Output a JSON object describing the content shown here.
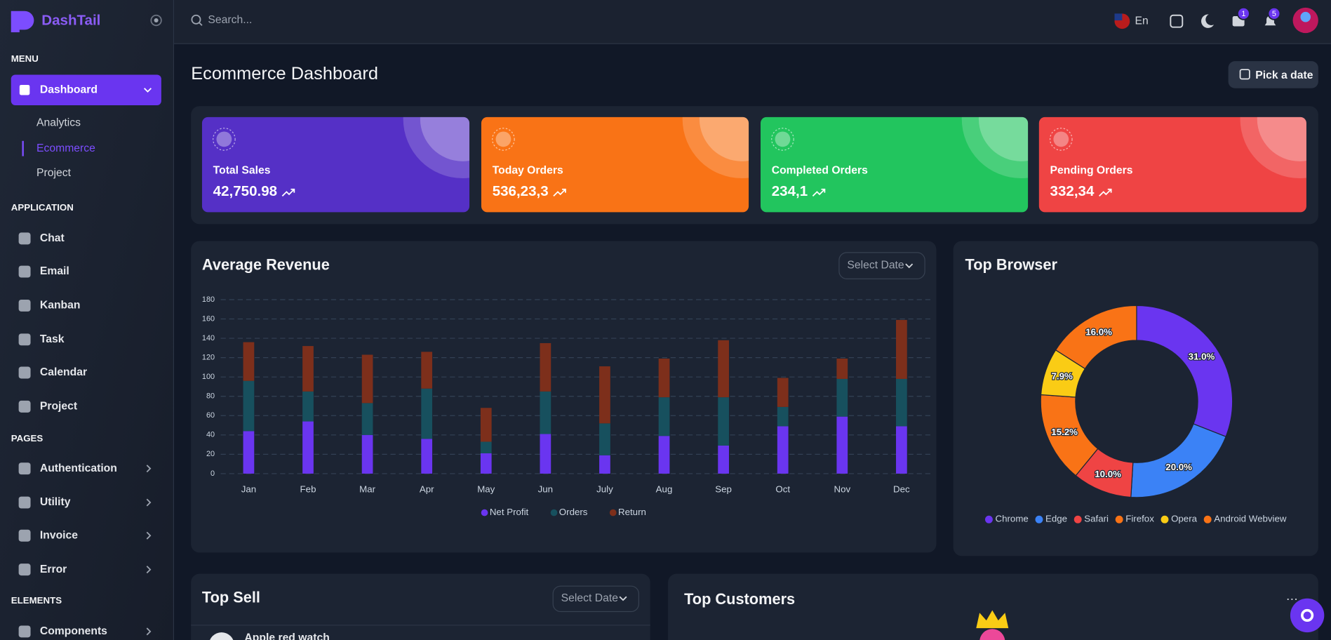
{
  "sidebar": {
    "brand": "DashTail",
    "sections": [
      {
        "title": "MENU",
        "items": [
          {
            "label": "Dashboard",
            "children": [
              "Analytics",
              "Ecommerce",
              "Project"
            ]
          }
        ]
      },
      {
        "title": "APPLICATION",
        "items": [
          {
            "label": "Chat"
          },
          {
            "label": "Email"
          },
          {
            "label": "Kanban"
          },
          {
            "label": "Task"
          },
          {
            "label": "Calendar"
          },
          {
            "label": "Project"
          }
        ]
      },
      {
        "title": "PAGES",
        "items": [
          {
            "label": "Authentication"
          },
          {
            "label": "Utility"
          },
          {
            "label": "Invoice"
          },
          {
            "label": "Error"
          }
        ]
      },
      {
        "title": "ELEMENTS",
        "items": [
          {
            "label": "Components"
          }
        ]
      }
    ]
  },
  "header": {
    "search_placeholder": "Search...",
    "language": "En",
    "badges": [
      "1",
      "5"
    ]
  },
  "page": {
    "title": "Ecommerce Dashboard",
    "date_button": "Pick a date"
  },
  "stats": [
    {
      "label": "Total Sales",
      "value": "42,750.98"
    },
    {
      "label": "Today Orders",
      "value": "536,23,3"
    },
    {
      "label": "Completed Orders",
      "value": "234,1"
    },
    {
      "label": "Pending Orders",
      "value": "332,34"
    }
  ],
  "revenue_card": {
    "select": "Select Date"
  },
  "top_sell": {
    "title": "Top Sell",
    "select": "Select Date",
    "items": [
      "Apple red watch"
    ]
  },
  "top_customers": {
    "title": "Top Customers"
  },
  "chart_data": [
    {
      "type": "stacked_bar",
      "title": "Average Revenue",
      "categories": [
        "Jan",
        "Feb",
        "Mar",
        "Apr",
        "May",
        "Jun",
        "July",
        "Aug",
        "Sep",
        "Oct",
        "Nov",
        "Dec"
      ],
      "series": [
        {
          "name": "Net Profit",
          "color": "#6a35f0",
          "values": [
            44,
            54,
            40,
            36,
            21,
            41,
            19,
            39,
            29,
            49,
            59,
            49
          ]
        },
        {
          "name": "Orders",
          "color": "#17505e",
          "values": [
            52,
            31,
            33,
            52,
            12,
            44,
            33,
            40,
            50,
            20,
            39,
            49
          ]
        },
        {
          "name": "Return",
          "color": "#7d2f1b",
          "values": [
            40,
            47,
            50,
            38,
            35,
            50,
            59,
            40,
            59,
            30,
            21,
            61
          ]
        }
      ],
      "ylim": [
        0,
        180
      ],
      "yticks": [
        0,
        20,
        40,
        60,
        80,
        100,
        120,
        140,
        160,
        180
      ],
      "grid": true,
      "legend": "bottom"
    },
    {
      "type": "donut",
      "title": "Top Browser",
      "categories": [
        "Chrome",
        "Edge",
        "Safari",
        "Firefox",
        "Opera",
        "Android Webview"
      ],
      "values": [
        31.0,
        20.0,
        10.0,
        15.2,
        7.9,
        16.0
      ],
      "value_labels": [
        "31.0%",
        "20.0%",
        "10.0%",
        "15.2%",
        "7.9%",
        "16.0%"
      ],
      "colors": [
        "#6a35f0",
        "#3b82f6",
        "#ef4444",
        "#f97316",
        "#facc15",
        "#f97316"
      ],
      "legend": "bottom"
    }
  ]
}
